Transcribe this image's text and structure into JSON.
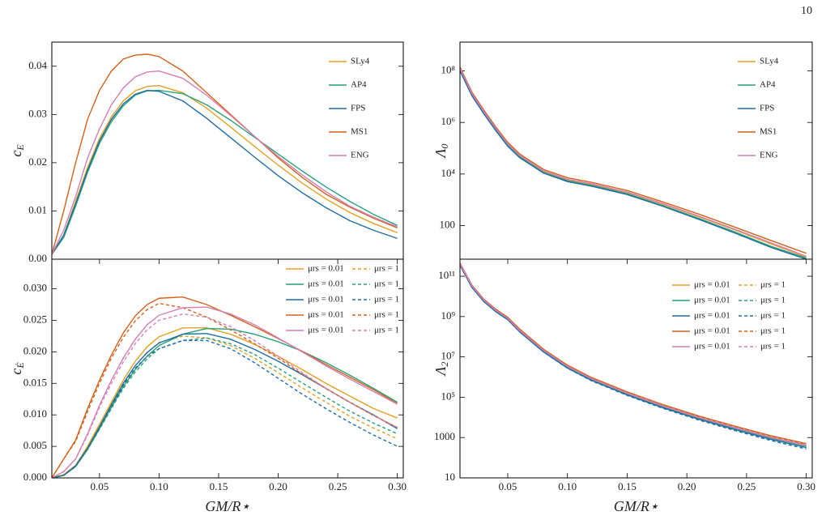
{
  "page_number": "10",
  "chart_data": [
    {
      "type": "line",
      "ylabel": "cE",
      "legend": "upper right",
      "xlim": [
        0.01,
        0.305
      ],
      "ylim": [
        0,
        0.045
      ],
      "yticks": [
        {
          "value": 0,
          "label": "0.00"
        },
        0.01,
        0.02,
        0.03,
        0.04
      ],
      "x": [
        0.01,
        0.02,
        0.03,
        0.04,
        0.05,
        0.06,
        0.07,
        0.08,
        0.09,
        0.1,
        0.12,
        0.14,
        0.16,
        0.18,
        0.2,
        0.22,
        0.24,
        0.26,
        0.28,
        0.3
      ],
      "series": [
        {
          "name": "SLy4",
          "color": "#e3a024",
          "dash": false,
          "values": [
            0.001,
            0.005,
            0.012,
            0.019,
            0.025,
            0.0295,
            0.0328,
            0.0349,
            0.0358,
            0.036,
            0.0345,
            0.0313,
            0.0274,
            0.0234,
            0.0195,
            0.0158,
            0.0125,
            0.0097,
            0.0074,
            0.0055
          ]
        },
        {
          "name": "AP4",
          "color": "#27a37a",
          "dash": false,
          "values": [
            0.001,
            0.0045,
            0.011,
            0.018,
            0.024,
            0.0285,
            0.0318,
            0.034,
            0.0349,
            0.035,
            0.0343,
            0.032,
            0.0288,
            0.0253,
            0.0218,
            0.0183,
            0.015,
            0.012,
            0.0093,
            0.007
          ]
        },
        {
          "name": "FPS",
          "color": "#1f6ea6",
          "dash": false,
          "values": [
            0.001,
            0.005,
            0.0115,
            0.0185,
            0.0245,
            0.029,
            0.0322,
            0.0342,
            0.035,
            0.0348,
            0.0328,
            0.0292,
            0.0252,
            0.0212,
            0.0173,
            0.0138,
            0.0107,
            0.008,
            0.006,
            0.0043
          ]
        },
        {
          "name": "MS1",
          "color": "#d4621c",
          "dash": false,
          "values": [
            0.001,
            0.01,
            0.02,
            0.029,
            0.035,
            0.039,
            0.0415,
            0.0423,
            0.0425,
            0.042,
            0.039,
            0.0345,
            0.03,
            0.0255,
            0.021,
            0.017,
            0.0135,
            0.0108,
            0.0085,
            0.0065
          ]
        },
        {
          "name": "ENG",
          "color": "#d47fb6",
          "dash": false,
          "values": [
            0.001,
            0.006,
            0.013,
            0.021,
            0.027,
            0.032,
            0.0355,
            0.0378,
            0.0388,
            0.039,
            0.0375,
            0.034,
            0.0298,
            0.0255,
            0.0213,
            0.0175,
            0.014,
            0.011,
            0.0087,
            0.0067
          ]
        }
      ]
    },
    {
      "type": "line",
      "ylabel": "Λ0",
      "legend": "upper right",
      "ylog": true,
      "xlim": [
        0.01,
        0.305
      ],
      "ylim": [
        5,
        1300000000
      ],
      "yticks": [
        100,
        {
          "value": 10000,
          "label": "10⁴"
        },
        {
          "value": 1000000,
          "label": "10⁶"
        },
        {
          "value": 100000000,
          "label": "10⁸"
        }
      ],
      "x": [
        0.01,
        0.02,
        0.03,
        0.04,
        0.05,
        0.06,
        0.08,
        0.1,
        0.12,
        0.15,
        0.18,
        0.21,
        0.24,
        0.27,
        0.3
      ],
      "series": [
        {
          "name": "SLy4",
          "color": "#e3a024",
          "dash": false,
          "values": [
            120000000,
            12600000,
            2500000,
            560000,
            140000,
            50000,
            12600,
            6000,
            4000,
            1900,
            680,
            220,
            68,
            20,
            6
          ]
        },
        {
          "name": "AP4",
          "color": "#27a37a",
          "dash": false,
          "values": [
            110000000,
            11500000,
            2300000,
            510000,
            128000,
            46000,
            11500,
            5500,
            3650,
            1720,
            600,
            190,
            57,
            16,
            5.5
          ]
        },
        {
          "name": "FPS",
          "color": "#1f6ea6",
          "dash": false,
          "values": [
            100000000,
            10800000,
            2150000,
            480000,
            120000,
            43000,
            10800,
            5100,
            3400,
            1600,
            560,
            175,
            52,
            14.5,
            5
          ]
        },
        {
          "name": "MS1",
          "color": "#d4621c",
          "dash": false,
          "values": [
            140000000,
            15000000,
            3000000,
            670000,
            170000,
            60000,
            15000,
            7200,
            4800,
            2300,
            830,
            280,
            88,
            27,
            8.5
          ]
        },
        {
          "name": "ENG",
          "color": "#d47fb6",
          "dash": false,
          "values": [
            125000000,
            13200000,
            2600000,
            590000,
            147000,
            53000,
            13300,
            6300,
            4200,
            2000,
            720,
            235,
            73,
            22,
            6.5
          ]
        }
      ]
    },
    {
      "type": "line",
      "ylabel": "cĖ",
      "xlabel": "GM/R⋆",
      "legend": "upper right",
      "legend_columns": 2,
      "xlim": [
        0.01,
        0.305
      ],
      "ylim": [
        0,
        0.0347
      ],
      "xticks": [
        0.05,
        {
          "value": 0.1,
          "label": "0.10"
        },
        0.15,
        {
          "value": 0.2,
          "label": "0.20"
        },
        0.25,
        {
          "value": 0.3,
          "label": "0.30"
        }
      ],
      "yticks": [
        {
          "value": 0,
          "label": "0.000"
        },
        0.005,
        {
          "value": 0.01,
          "label": "0.010"
        },
        0.015,
        {
          "value": 0.02,
          "label": "0.020"
        },
        0.025,
        {
          "value": 0.03,
          "label": "0.030"
        }
      ],
      "x": [
        0.01,
        0.02,
        0.03,
        0.04,
        0.05,
        0.06,
        0.07,
        0.08,
        0.09,
        0.1,
        0.12,
        0.14,
        0.16,
        0.18,
        0.2,
        0.22,
        0.24,
        0.26,
        0.28,
        0.3
      ],
      "series": [
        {
          "name": "μrs = 0.01",
          "color": "#e3a024",
          "dash": false,
          "values": [
            0,
            0.0005,
            0.002,
            0.005,
            0.0085,
            0.012,
            0.0155,
            0.0185,
            0.0208,
            0.0224,
            0.0238,
            0.0238,
            0.0228,
            0.0212,
            0.0193,
            0.0172,
            0.015,
            0.013,
            0.011,
            0.0095
          ]
        },
        {
          "name": "μrs = 1",
          "color": "#e3a024",
          "dash": true,
          "values": [
            0,
            0.0005,
            0.002,
            0.005,
            0.0083,
            0.0117,
            0.015,
            0.0178,
            0.0199,
            0.0215,
            0.0225,
            0.0222,
            0.021,
            0.019,
            0.0167,
            0.0143,
            0.012,
            0.0098,
            0.0079,
            0.0062
          ]
        },
        {
          "name": "μrs = 0.01",
          "color": "#27a37a",
          "dash": false,
          "values": [
            0,
            0.0004,
            0.0018,
            0.0045,
            0.0078,
            0.0112,
            0.0145,
            0.0172,
            0.0193,
            0.021,
            0.0228,
            0.0237,
            0.0236,
            0.0228,
            0.0216,
            0.0201,
            0.0183,
            0.0163,
            0.0142,
            0.012
          ]
        },
        {
          "name": "μrs = 1",
          "color": "#27a37a",
          "dash": true,
          "values": [
            0,
            0.0004,
            0.0018,
            0.0045,
            0.0077,
            0.011,
            0.0142,
            0.0168,
            0.0189,
            0.0205,
            0.0218,
            0.0222,
            0.0213,
            0.0196,
            0.0174,
            0.0151,
            0.0128,
            0.0106,
            0.0087,
            0.007
          ]
        },
        {
          "name": "μrs = 0.01",
          "color": "#1f6ea6",
          "dash": false,
          "values": [
            0,
            0.0004,
            0.0019,
            0.0047,
            0.0081,
            0.0116,
            0.015,
            0.0178,
            0.0199,
            0.0214,
            0.0228,
            0.0229,
            0.022,
            0.0204,
            0.0185,
            0.0164,
            0.0142,
            0.012,
            0.01,
            0.0078
          ]
        },
        {
          "name": "μrs = 1",
          "color": "#1f6ea6",
          "dash": true,
          "values": [
            0,
            0.0004,
            0.0019,
            0.0047,
            0.008,
            0.0114,
            0.0147,
            0.0174,
            0.0193,
            0.0205,
            0.0218,
            0.0218,
            0.0205,
            0.0183,
            0.0158,
            0.0133,
            0.011,
            0.0088,
            0.0068,
            0.005
          ]
        },
        {
          "name": "μrs = 0.01",
          "color": "#d4621c",
          "dash": false,
          "values": [
            0,
            0.003,
            0.006,
            0.011,
            0.0155,
            0.0195,
            0.023,
            0.0257,
            0.0275,
            0.0285,
            0.0287,
            0.0275,
            0.0258,
            0.024,
            0.0221,
            0.0201,
            0.018,
            0.016,
            0.014,
            0.0118
          ]
        },
        {
          "name": "μrs = 1",
          "color": "#d4621c",
          "dash": true,
          "values": [
            0,
            0.003,
            0.0058,
            0.0105,
            0.015,
            0.019,
            0.0223,
            0.0249,
            0.0267,
            0.0277,
            0.027,
            0.0255,
            0.0235,
            0.0213,
            0.019,
            0.0165,
            0.0142,
            0.012,
            0.0099,
            0.008
          ]
        },
        {
          "name": "μrs = 0.01",
          "color": "#d47fb6",
          "dash": false,
          "values": [
            0,
            0.001,
            0.003,
            0.007,
            0.0115,
            0.0155,
            0.019,
            0.022,
            0.0243,
            0.0258,
            0.027,
            0.0271,
            0.026,
            0.0243,
            0.0222,
            0.02,
            0.0178,
            0.0157,
            0.0137,
            0.0117
          ]
        },
        {
          "name": "μrs = 1",
          "color": "#d47fb6",
          "dash": true,
          "values": [
            0,
            0.001,
            0.003,
            0.0068,
            0.0112,
            0.015,
            0.0184,
            0.0213,
            0.0235,
            0.025,
            0.026,
            0.0255,
            0.024,
            0.0218,
            0.0193,
            0.0167,
            0.0142,
            0.012,
            0.0099,
            0.008
          ]
        }
      ]
    },
    {
      "type": "line",
      "ylabel": "Λ2",
      "xlabel": "GM/R⋆",
      "legend": "upper right",
      "legend_columns": 2,
      "ylog": true,
      "xlim": [
        0.01,
        0.305
      ],
      "ylim": [
        10,
        700000000000
      ],
      "xticks": [
        0.05,
        {
          "value": 0.1,
          "label": "0.10"
        },
        0.15,
        {
          "value": 0.2,
          "label": "0.20"
        },
        0.25,
        {
          "value": 0.3,
          "label": "0.30"
        }
      ],
      "yticks": [
        10,
        1000,
        {
          "value": 100000,
          "label": "10⁵"
        },
        {
          "value": 10000000,
          "label": "10⁷"
        },
        {
          "value": 1000000000,
          "label": "10⁹"
        },
        {
          "value": 100000000000,
          "label": "10¹¹"
        }
      ],
      "x": [
        0.01,
        0.02,
        0.03,
        0.04,
        0.05,
        0.06,
        0.08,
        0.1,
        0.12,
        0.15,
        0.18,
        0.21,
        0.24,
        0.27,
        0.3
      ],
      "series": [
        {
          "name": "μrs = 0.01",
          "color": "#e3a024",
          "dash": false,
          "values": [
            400000000000,
            32000000000,
            6300000000,
            2000000000,
            800000000,
            200000000,
            20000000,
            3200000,
            790000,
            150000,
            35000,
            9500,
            3000,
            1000,
            400
          ]
        },
        {
          "name": "μrs = 1",
          "color": "#e3a024",
          "dash": true,
          "values": [
            400000000000,
            32000000000,
            6300000000,
            2000000000,
            800000000,
            200000000,
            20000000,
            3100000,
            760000,
            142000,
            33000,
            8800,
            2750,
            900,
            350
          ]
        },
        {
          "name": "μrs = 0.01",
          "color": "#27a37a",
          "dash": false,
          "values": [
            370000000000,
            30000000000,
            5900000000,
            1850000000,
            740000000,
            185000000,
            18500000,
            2950000,
            730000,
            140000,
            33000,
            9000,
            2850,
            950,
            380
          ]
        },
        {
          "name": "μrs = 1",
          "color": "#27a37a",
          "dash": true,
          "values": [
            370000000000,
            30000000000,
            5900000000,
            1850000000,
            740000000,
            185000000,
            18500000,
            2900000,
            700000,
            133000,
            31000,
            8300,
            2600,
            850,
            320
          ]
        },
        {
          "name": "μrs = 0.01",
          "color": "#1f6ea6",
          "dash": false,
          "values": [
            350000000000,
            28000000000,
            5500000000,
            1750000000,
            700000000,
            175000000,
            17500000,
            2800000,
            690000,
            130000,
            30000,
            8100,
            2500,
            820,
            320
          ]
        },
        {
          "name": "μrs = 1",
          "color": "#1f6ea6",
          "dash": true,
          "values": [
            350000000000,
            28000000000,
            5500000000,
            1750000000,
            700000000,
            175000000,
            17500000,
            2750000,
            660000,
            123000,
            28000,
            7400,
            2250,
            720,
            270
          ]
        },
        {
          "name": "μrs = 0.01",
          "color": "#d4621c",
          "dash": false,
          "values": [
            450000000000,
            36000000000,
            7200000000,
            2300000000,
            920000000,
            240000000,
            24000000,
            3900000,
            960000,
            185000,
            43000,
            11800,
            3700,
            1250,
            500
          ]
        },
        {
          "name": "μrs = 1",
          "color": "#d4621c",
          "dash": true,
          "values": [
            450000000000,
            36000000000,
            7200000000,
            2300000000,
            920000000,
            240000000,
            24000000,
            3800000,
            930000,
            178000,
            41000,
            11000,
            3400,
            1130,
            450
          ]
        },
        {
          "name": "μrs = 0.01",
          "color": "#d47fb6",
          "dash": false,
          "values": [
            410000000000,
            33000000000,
            6500000000,
            2050000000,
            820000000,
            205000000,
            21000000,
            3400000,
            840000,
            160000,
            37000,
            10000,
            3150,
            1050,
            420
          ]
        },
        {
          "name": "μrs = 1",
          "color": "#d47fb6",
          "dash": true,
          "values": [
            410000000000,
            33000000000,
            6500000000,
            2050000000,
            820000000,
            205000000,
            21000000,
            3350000,
            820000,
            155000,
            35500,
            9600,
            3000,
            990,
            390
          ]
        }
      ]
    }
  ]
}
